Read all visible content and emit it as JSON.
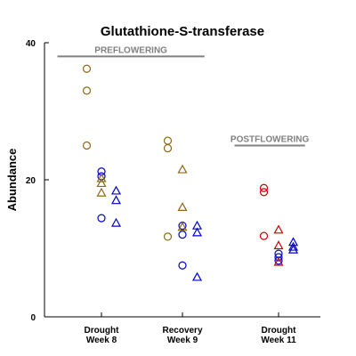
{
  "chart_data": {
    "type": "scatter",
    "title": "Glutathione-S-transferase",
    "ylabel": "Abundance",
    "xlabel": "",
    "ylim": [
      0,
      40
    ],
    "yticks": [
      0,
      20,
      40
    ],
    "grid": false,
    "groups": [
      {
        "label_line1": "Drought",
        "label_line2": "Week 8"
      },
      {
        "label_line1": "Recovery",
        "label_line2": "Week 9"
      },
      {
        "label_line1": "Drought",
        "label_line2": "Week 11"
      }
    ],
    "annotations": [
      {
        "text": "PREFLOWERING",
        "from_group": 0,
        "to_group": 1,
        "y": 38
      },
      {
        "text": "POSTFLOWERING",
        "from_group": 2,
        "to_group": 2,
        "y": 25
      }
    ],
    "colors": {
      "olive": "#8B6914",
      "blue": "#0000CC",
      "red": "#CC0000"
    },
    "series": [
      {
        "group": 0,
        "offset": -1,
        "marker": "circle",
        "color": "olive",
        "values": [
          36.2,
          33.0,
          25.0
        ]
      },
      {
        "group": 0,
        "offset": 0,
        "marker": "circle",
        "color": "blue",
        "values": [
          21.2,
          20.5,
          14.4
        ]
      },
      {
        "group": 0,
        "offset": 0,
        "marker": "triangle",
        "color": "olive",
        "values": [
          20.2,
          19.5,
          18.1
        ]
      },
      {
        "group": 0,
        "offset": 1,
        "marker": "triangle",
        "color": "blue",
        "values": [
          18.4,
          17.0,
          13.7
        ]
      },
      {
        "group": 1,
        "offset": -1,
        "marker": "circle",
        "color": "olive",
        "values": [
          25.7,
          24.6,
          11.7
        ]
      },
      {
        "group": 1,
        "offset": 0,
        "marker": "circle",
        "color": "blue",
        "values": [
          13.3,
          12.0,
          7.5
        ]
      },
      {
        "group": 1,
        "offset": 0,
        "marker": "triangle",
        "color": "olive",
        "values": [
          21.5,
          16.0,
          13.1
        ]
      },
      {
        "group": 1,
        "offset": 1,
        "marker": "triangle",
        "color": "blue",
        "values": [
          13.3,
          12.3,
          5.8
        ]
      },
      {
        "group": 2,
        "offset": -1,
        "marker": "circle",
        "color": "red",
        "values": [
          18.8,
          18.2,
          11.8
        ]
      },
      {
        "group": 2,
        "offset": 0,
        "marker": "circle",
        "color": "blue",
        "values": [
          9.2,
          8.7,
          8.2
        ]
      },
      {
        "group": 2,
        "offset": 0,
        "marker": "triangle",
        "color": "red",
        "values": [
          12.7,
          10.4,
          8.0
        ]
      },
      {
        "group": 2,
        "offset": 1,
        "marker": "triangle",
        "color": "blue",
        "values": [
          10.9,
          10.2,
          9.8
        ]
      }
    ]
  }
}
